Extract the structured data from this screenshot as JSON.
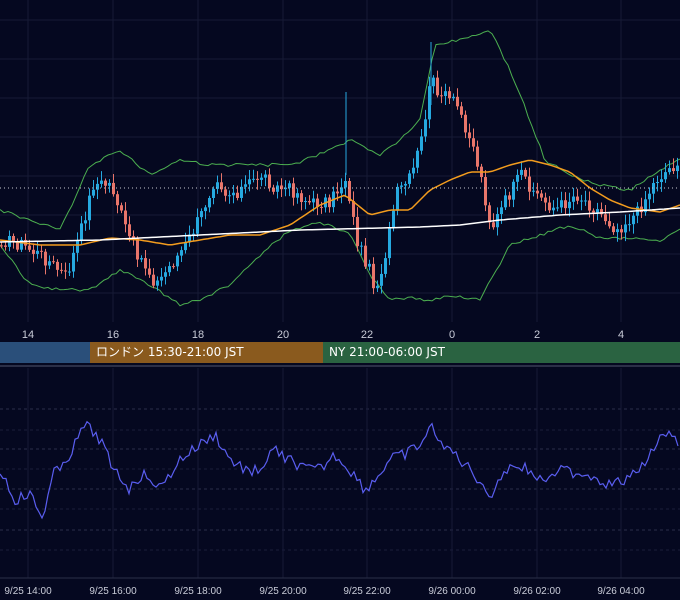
{
  "sessions": {
    "tokyo": {
      "label": "",
      "color": "#2a4f7a"
    },
    "london": {
      "label": "ロンドン 15:30-21:00 JST",
      "color": "#8a5a1e"
    },
    "ny": {
      "label": "NY 21:00-06:00 JST",
      "color": "#2a6341"
    }
  },
  "chart_data": [
    {
      "type": "candlestick",
      "title": "",
      "x_tick_labels": [
        "14",
        "16",
        "18",
        "20",
        "22",
        "0",
        "2",
        "4"
      ],
      "indicators": [
        {
          "name": "",
          "color": "#4caf50",
          "kind": "bollinger-bands"
        },
        {
          "name": "",
          "color": "#f39c1e",
          "kind": "moving-average-short"
        },
        {
          "name": "",
          "color": "#ffffff",
          "kind": "moving-average-long"
        }
      ],
      "colors": {
        "up": "#26a9e0",
        "down": "#e8756a"
      },
      "reference_line": "dotted",
      "grid": true
    },
    {
      "type": "line",
      "title": "",
      "color": "#5a5ef0",
      "x_tick_labels": [
        "9/25 14:00",
        "9/25 16:00",
        "9/25 18:00",
        "9/25 20:00",
        "9/25 22:00",
        "9/26 00:00",
        "9/26 02:00",
        "9/26 04:00"
      ],
      "grid": true
    }
  ]
}
